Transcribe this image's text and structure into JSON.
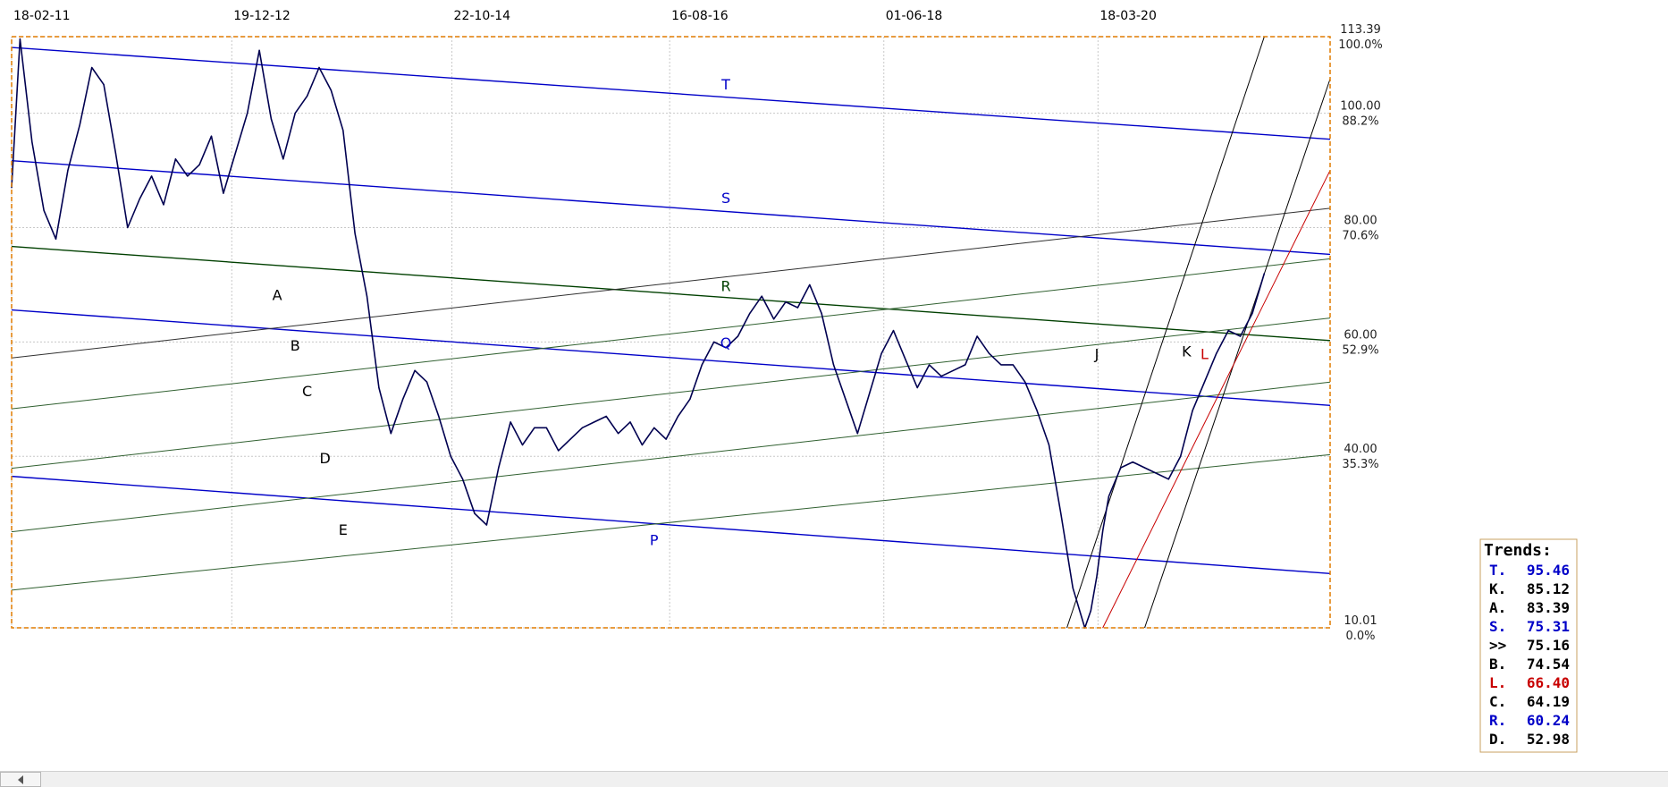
{
  "chart_data": {
    "type": "line",
    "title": "",
    "xlabel": "",
    "ylabel": "",
    "grid": true,
    "legend_placement": "bottom-right",
    "x_ticks": [
      {
        "label": "18-02-11",
        "x": 2011.13
      },
      {
        "label": "19-12-12",
        "x": 2012.97
      },
      {
        "label": "22-10-14",
        "x": 2014.81
      },
      {
        "label": "16-08-16",
        "x": 2016.63
      },
      {
        "label": "01-06-18",
        "x": 2018.42
      },
      {
        "label": "18-03-20",
        "x": 2020.21
      }
    ],
    "xlim": [
      2011.13,
      2022.15
    ],
    "ylim": [
      10.01,
      113.39
    ],
    "y_ticks": [
      {
        "value": "113.39",
        "pct": "100.0%",
        "y": 113.39
      },
      {
        "value": "100.00",
        "pct": "88.2%",
        "y": 100.0
      },
      {
        "value": "80.00",
        "pct": "70.6%",
        "y": 80.0
      },
      {
        "value": "60.00",
        "pct": "52.9%",
        "y": 60.0
      },
      {
        "value": "40.00",
        "pct": "35.3%",
        "y": 40.0
      },
      {
        "value": "10.01",
        "pct": "0.0%",
        "y": 10.01
      }
    ],
    "series": [
      {
        "color": "#000050",
        "x": [
          2011.13,
          2011.2,
          2011.3,
          2011.4,
          2011.5,
          2011.6,
          2011.7,
          2011.8,
          2011.9,
          2012.0,
          2012.1,
          2012.2,
          2012.3,
          2012.4,
          2012.5,
          2012.6,
          2012.7,
          2012.8,
          2012.9,
          2013.0,
          2013.1,
          2013.2,
          2013.3,
          2013.4,
          2013.5,
          2013.6,
          2013.7,
          2013.8,
          2013.9,
          2014.0,
          2014.1,
          2014.2,
          2014.3,
          2014.4,
          2014.5,
          2014.6,
          2014.7,
          2014.8,
          2014.9,
          2015.0,
          2015.1,
          2015.2,
          2015.3,
          2015.4,
          2015.5,
          2015.6,
          2015.7,
          2015.8,
          2015.9,
          2016.0,
          2016.1,
          2016.2,
          2016.3,
          2016.4,
          2016.5,
          2016.6,
          2016.7,
          2016.8,
          2016.9,
          2017.0,
          2017.1,
          2017.2,
          2017.3,
          2017.4,
          2017.5,
          2017.6,
          2017.7,
          2017.8,
          2017.9,
          2018.0,
          2018.1,
          2018.2,
          2018.3,
          2018.4,
          2018.5,
          2018.6,
          2018.7,
          2018.8,
          2018.9,
          2019.0,
          2019.1,
          2019.2,
          2019.3,
          2019.4,
          2019.5,
          2019.6,
          2019.7,
          2019.8,
          2019.9,
          2020.0,
          2020.1,
          2020.15,
          2020.2,
          2020.25,
          2020.3,
          2020.4,
          2020.5,
          2020.6,
          2020.7,
          2020.8,
          2020.9,
          2021.0,
          2021.1,
          2021.2,
          2021.3,
          2021.4,
          2021.5,
          2021.6
        ],
        "y": [
          87.0,
          113.0,
          95.0,
          83.0,
          78.0,
          90.0,
          98.0,
          108.0,
          105.0,
          93.0,
          80.0,
          85.0,
          89.0,
          84.0,
          92.0,
          89.0,
          91.0,
          96.0,
          86.0,
          93.0,
          100.0,
          111.0,
          99.0,
          92.0,
          100.0,
          103.0,
          108.0,
          104.0,
          97.0,
          79.0,
          68.0,
          52.0,
          44.0,
          50.0,
          55.0,
          53.0,
          47.0,
          40.0,
          36.0,
          30.0,
          28.0,
          38.0,
          46.0,
          42.0,
          45.0,
          45.0,
          41.0,
          43.0,
          45.0,
          46.0,
          47.0,
          44.0,
          46.0,
          42.0,
          45.0,
          43.0,
          47.0,
          50.0,
          56.0,
          60.0,
          59.0,
          61.0,
          65.0,
          68.0,
          64.0,
          67.0,
          66.0,
          70.0,
          65.0,
          56.0,
          50.0,
          44.0,
          51.0,
          58.0,
          62.0,
          57.0,
          52.0,
          56.0,
          54.0,
          55.0,
          56.0,
          61.0,
          58.0,
          56.0,
          56.0,
          53.0,
          48.0,
          42.0,
          30.0,
          17.0,
          10.0,
          13.0,
          19.0,
          27.0,
          33.0,
          38.0,
          39.0,
          38.0,
          37.0,
          36.0,
          40.0,
          48.0,
          53.0,
          58.0,
          62.0,
          61.0,
          65.0,
          72.0
        ]
      }
    ],
    "trend_lines": [
      {
        "id": "T",
        "label": "T",
        "color": "#0000c8",
        "x": [
          2011.13,
          2022.15
        ],
        "y": [
          111.5,
          95.46
        ],
        "label_at": [
          2017.1,
          104.2
        ]
      },
      {
        "id": "S",
        "label": "S",
        "color": "#0000c8",
        "x": [
          2011.13,
          2022.15
        ],
        "y": [
          91.7,
          75.31
        ],
        "label_at": [
          2017.1,
          84.3
        ]
      },
      {
        "id": "R",
        "label": "R",
        "color": "#004000",
        "x": [
          2011.13,
          2022.15
        ],
        "y": [
          76.7,
          60.24
        ],
        "label_at": [
          2017.1,
          68.9
        ]
      },
      {
        "id": "Q",
        "label": "Q",
        "color": "#0000c8",
        "x": [
          2011.13,
          2022.15
        ],
        "y": [
          65.6,
          48.9
        ],
        "label_at": [
          2017.1,
          59.0
        ]
      },
      {
        "id": "P",
        "label": "P",
        "color": "#0000c8",
        "x": [
          2011.13,
          2022.15
        ],
        "y": [
          36.5,
          19.5
        ],
        "label_at": [
          2016.5,
          24.5
        ]
      },
      {
        "id": "A",
        "label": "A",
        "color": "#303030",
        "x": [
          2011.13,
          2022.15
        ],
        "y": [
          57.2,
          83.39
        ],
        "label_at": [
          2013.35,
          67.3
        ]
      },
      {
        "id": "B",
        "label": "B",
        "color": "#306030",
        "x": [
          2011.13,
          2022.15
        ],
        "y": [
          48.3,
          74.54
        ],
        "label_at": [
          2013.5,
          58.5
        ]
      },
      {
        "id": "C",
        "label": "C",
        "color": "#306030",
        "x": [
          2011.13,
          2022.15
        ],
        "y": [
          37.9,
          64.19
        ],
        "label_at": [
          2013.6,
          50.5
        ]
      },
      {
        "id": "D",
        "label": "D",
        "color": "#306030",
        "x": [
          2011.13,
          2022.15
        ],
        "y": [
          26.8,
          52.98
        ],
        "label_at": [
          2013.75,
          38.8
        ]
      },
      {
        "id": "E",
        "label": "E",
        "color": "#306030",
        "x": [
          2011.13,
          2022.15
        ],
        "y": [
          16.6,
          40.3
        ],
        "label_at": [
          2013.9,
          26.3
        ]
      },
      {
        "id": "J",
        "label": "J",
        "color": "#000000",
        "x": [
          2019.95,
          2021.6
        ],
        "y": [
          10.01,
          113.39
        ],
        "label_at": [
          2020.2,
          57.0
        ]
      },
      {
        "id": "K",
        "label": "K",
        "color": "#000000",
        "x": [
          2020.6,
          2022.15
        ],
        "y": [
          10.01,
          106.0
        ],
        "label_at": [
          2020.95,
          57.5
        ]
      },
      {
        "id": "L",
        "label": "L",
        "color": "#c80000",
        "x": [
          2020.25,
          2022.15
        ],
        "y": [
          10.01,
          90.0
        ],
        "label_at": [
          2021.1,
          57.0
        ]
      }
    ],
    "legend": {
      "title": "Trends:",
      "entries": [
        {
          "key": "T.",
          "value": "95.46",
          "color": "#0000c8"
        },
        {
          "key": "K.",
          "value": "85.12",
          "color": "#000000"
        },
        {
          "key": "A.",
          "value": "83.39",
          "color": "#000000"
        },
        {
          "key": "S.",
          "value": "75.31",
          "color": "#0000c8"
        },
        {
          "key": ">>",
          "value": "75.16",
          "color": "#000000"
        },
        {
          "key": "B.",
          "value": "74.54",
          "color": "#000000"
        },
        {
          "key": "L.",
          "value": "66.40",
          "color": "#c80000"
        },
        {
          "key": "C.",
          "value": "64.19",
          "color": "#000000"
        },
        {
          "key": "R.",
          "value": "60.24",
          "color": "#0000c8"
        },
        {
          "key": "D.",
          "value": "52.98",
          "color": "#000000"
        }
      ]
    }
  },
  "colors": {
    "frame": "#e07c00",
    "grid": "#c8c8c8",
    "price_line": "#000050"
  },
  "icons": {
    "scroll_left": "chevron-left-icon"
  }
}
